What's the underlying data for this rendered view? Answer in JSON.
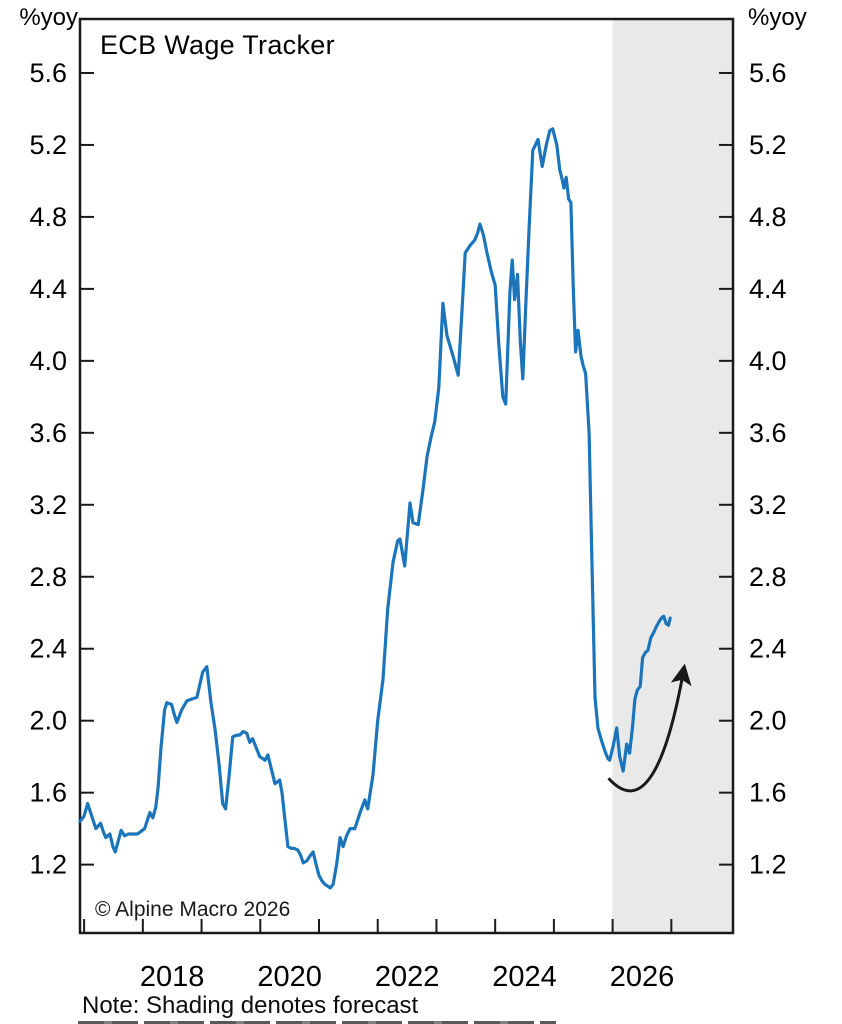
{
  "page": {
    "title": "ECB Wage Tracker"
  },
  "chart_data": {
    "type": "line",
    "title": "ECB Wage Tracker",
    "unit_label": "%yoy",
    "note": "Note: Shading denotes forecast",
    "copyright": "© Alpine Macro 2026",
    "x_axis": {
      "range": [
        2016.93,
        2028.05
      ],
      "year_ticks": [
        2017,
        2018,
        2019,
        2020,
        2021,
        2022,
        2023,
        2024,
        2025,
        2026,
        2027
      ],
      "year_labels": [
        2018,
        2020,
        2022,
        2024,
        2026
      ],
      "labels_centered_mid_year": true
    },
    "y_axis": {
      "range": [
        0.82,
        5.9
      ],
      "ticks": [
        1.2,
        1.6,
        2.0,
        2.4,
        2.8,
        3.2,
        3.6,
        4.0,
        4.4,
        4.8,
        5.2,
        5.6
      ],
      "sides": "both",
      "grid": false
    },
    "forecast": {
      "start": 2026.0,
      "shading_color": "#e9e9e9"
    },
    "line_color": "#1c75bb",
    "axis_color": "#1a1a1a",
    "legend": "none",
    "series": [
      {
        "name": "ECB Wage Tracker (%yoy)",
        "points": [
          [
            2016.93,
            1.44
          ],
          [
            2017.0,
            1.47
          ],
          [
            2017.06,
            1.54
          ],
          [
            2017.1,
            1.5
          ],
          [
            2017.15,
            1.45
          ],
          [
            2017.2,
            1.4
          ],
          [
            2017.28,
            1.43
          ],
          [
            2017.33,
            1.38
          ],
          [
            2017.37,
            1.35
          ],
          [
            2017.44,
            1.37
          ],
          [
            2017.49,
            1.3
          ],
          [
            2017.53,
            1.27
          ],
          [
            2017.58,
            1.33
          ],
          [
            2017.63,
            1.39
          ],
          [
            2017.69,
            1.36
          ],
          [
            2017.75,
            1.37
          ],
          [
            2017.83,
            1.37
          ],
          [
            2017.91,
            1.37
          ],
          [
            2017.95,
            1.38
          ],
          [
            2018.03,
            1.4
          ],
          [
            2018.12,
            1.49
          ],
          [
            2018.17,
            1.46
          ],
          [
            2018.22,
            1.52
          ],
          [
            2018.26,
            1.63
          ],
          [
            2018.31,
            1.85
          ],
          [
            2018.37,
            2.06
          ],
          [
            2018.41,
            2.1
          ],
          [
            2018.49,
            2.09
          ],
          [
            2018.54,
            2.03
          ],
          [
            2018.58,
            1.99
          ],
          [
            2018.66,
            2.06
          ],
          [
            2018.75,
            2.11
          ],
          [
            2018.83,
            2.12
          ],
          [
            2018.92,
            2.13
          ],
          [
            2018.97,
            2.2
          ],
          [
            2019.02,
            2.27
          ],
          [
            2019.09,
            2.3
          ],
          [
            2019.16,
            2.1
          ],
          [
            2019.23,
            1.95
          ],
          [
            2019.3,
            1.75
          ],
          [
            2019.36,
            1.54
          ],
          [
            2019.41,
            1.51
          ],
          [
            2019.47,
            1.7
          ],
          [
            2019.53,
            1.91
          ],
          [
            2019.6,
            1.92
          ],
          [
            2019.65,
            1.92
          ],
          [
            2019.71,
            1.94
          ],
          [
            2019.77,
            1.93
          ],
          [
            2019.82,
            1.88
          ],
          [
            2019.87,
            1.9
          ],
          [
            2019.93,
            1.85
          ],
          [
            2019.99,
            1.8
          ],
          [
            2020.04,
            1.79
          ],
          [
            2020.08,
            1.78
          ],
          [
            2020.13,
            1.81
          ],
          [
            2020.19,
            1.73
          ],
          [
            2020.25,
            1.65
          ],
          [
            2020.33,
            1.67
          ],
          [
            2020.37,
            1.6
          ],
          [
            2020.42,
            1.45
          ],
          [
            2020.47,
            1.3
          ],
          [
            2020.53,
            1.29
          ],
          [
            2020.58,
            1.29
          ],
          [
            2020.64,
            1.28
          ],
          [
            2020.69,
            1.25
          ],
          [
            2020.73,
            1.21
          ],
          [
            2020.79,
            1.22
          ],
          [
            2020.85,
            1.25
          ],
          [
            2020.9,
            1.27
          ],
          [
            2020.95,
            1.2
          ],
          [
            2021.0,
            1.14
          ],
          [
            2021.05,
            1.11
          ],
          [
            2021.1,
            1.09
          ],
          [
            2021.15,
            1.08
          ],
          [
            2021.19,
            1.07
          ],
          [
            2021.24,
            1.09
          ],
          [
            2021.3,
            1.2
          ],
          [
            2021.36,
            1.35
          ],
          [
            2021.41,
            1.3
          ],
          [
            2021.47,
            1.36
          ],
          [
            2021.53,
            1.4
          ],
          [
            2021.61,
            1.4
          ],
          [
            2021.66,
            1.45
          ],
          [
            2021.7,
            1.49
          ],
          [
            2021.78,
            1.56
          ],
          [
            2021.83,
            1.51
          ],
          [
            2021.92,
            1.7
          ],
          [
            2022.0,
            2.0
          ],
          [
            2022.09,
            2.23
          ],
          [
            2022.17,
            2.62
          ],
          [
            2022.26,
            2.88
          ],
          [
            2022.34,
            3.0
          ],
          [
            2022.38,
            3.01
          ],
          [
            2022.46,
            2.86
          ],
          [
            2022.55,
            3.21
          ],
          [
            2022.6,
            3.1
          ],
          [
            2022.69,
            3.09
          ],
          [
            2022.77,
            3.28
          ],
          [
            2022.84,
            3.47
          ],
          [
            2022.91,
            3.58
          ],
          [
            2022.97,
            3.66
          ],
          [
            2023.04,
            3.85
          ],
          [
            2023.11,
            4.32
          ],
          [
            2023.18,
            4.14
          ],
          [
            2023.28,
            4.03
          ],
          [
            2023.37,
            3.92
          ],
          [
            2023.43,
            4.25
          ],
          [
            2023.49,
            4.6
          ],
          [
            2023.57,
            4.64
          ],
          [
            2023.65,
            4.67
          ],
          [
            2023.7,
            4.71
          ],
          [
            2023.74,
            4.76
          ],
          [
            2023.8,
            4.7
          ],
          [
            2023.86,
            4.6
          ],
          [
            2023.93,
            4.5
          ],
          [
            2024.0,
            4.42
          ],
          [
            2024.06,
            4.1
          ],
          [
            2024.13,
            3.8
          ],
          [
            2024.18,
            3.76
          ],
          [
            2024.25,
            4.38
          ],
          [
            2024.29,
            4.56
          ],
          [
            2024.33,
            4.34
          ],
          [
            2024.38,
            4.48
          ],
          [
            2024.43,
            4.1
          ],
          [
            2024.47,
            3.9
          ],
          [
            2024.52,
            4.3
          ],
          [
            2024.58,
            4.75
          ],
          [
            2024.64,
            5.17
          ],
          [
            2024.73,
            5.23
          ],
          [
            2024.8,
            5.08
          ],
          [
            2024.87,
            5.2
          ],
          [
            2024.93,
            5.28
          ],
          [
            2024.98,
            5.29
          ],
          [
            2025.05,
            5.2
          ],
          [
            2025.1,
            5.06
          ],
          [
            2025.14,
            5.01
          ],
          [
            2025.17,
            4.96
          ],
          [
            2025.21,
            5.02
          ],
          [
            2025.25,
            4.9
          ],
          [
            2025.29,
            4.88
          ],
          [
            2025.33,
            4.4
          ],
          [
            2025.37,
            4.05
          ],
          [
            2025.41,
            4.17
          ],
          [
            2025.46,
            4.03
          ],
          [
            2025.5,
            3.97
          ],
          [
            2025.54,
            3.93
          ],
          [
            2025.6,
            3.6
          ],
          [
            2025.65,
            2.84
          ],
          [
            2025.7,
            2.13
          ],
          [
            2025.75,
            1.96
          ],
          [
            2025.81,
            1.89
          ],
          [
            2025.87,
            1.83
          ],
          [
            2025.92,
            1.79
          ],
          [
            2025.95,
            1.78
          ],
          [
            2026.01,
            1.86
          ],
          [
            2026.07,
            1.96
          ],
          [
            2026.12,
            1.8
          ],
          [
            2026.18,
            1.72
          ],
          [
            2026.24,
            1.87
          ],
          [
            2026.29,
            1.82
          ],
          [
            2026.34,
            1.97
          ],
          [
            2026.38,
            2.12
          ],
          [
            2026.42,
            2.17
          ],
          [
            2026.47,
            2.19
          ],
          [
            2026.51,
            2.35
          ],
          [
            2026.56,
            2.38
          ],
          [
            2026.6,
            2.39
          ],
          [
            2026.65,
            2.46
          ],
          [
            2026.7,
            2.49
          ],
          [
            2026.74,
            2.52
          ],
          [
            2026.79,
            2.55
          ],
          [
            2026.83,
            2.57
          ],
          [
            2026.87,
            2.58
          ],
          [
            2026.91,
            2.54
          ],
          [
            2026.95,
            2.53
          ],
          [
            2026.98,
            2.57
          ]
        ]
      }
    ],
    "annotations": [
      {
        "type": "curved-arrow",
        "from": [
          2025.93,
          1.68
        ],
        "control": [
          2026.73,
          1.39
        ],
        "to": [
          2027.22,
          2.3
        ],
        "color": "#1a1a1a",
        "meaning": "forecast rebound"
      }
    ]
  }
}
